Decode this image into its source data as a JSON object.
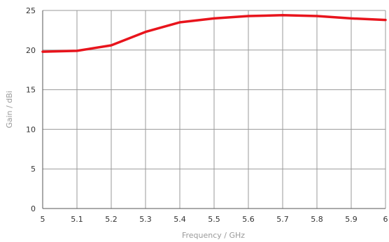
{
  "chart_data": {
    "type": "line",
    "title": "",
    "xlabel": "Frequency / GHz",
    "ylabel": "Gain / dBi",
    "xlim": [
      5,
      6
    ],
    "ylim": [
      0,
      25
    ],
    "x_ticks": [
      "5",
      "5.1",
      "5.2",
      "5.3",
      "5.4",
      "5.5",
      "5.6",
      "5.7",
      "5.8",
      "5.9",
      "6"
    ],
    "y_ticks": [
      "0",
      "5",
      "10",
      "15",
      "20",
      "25"
    ],
    "grid": true,
    "series": [
      {
        "color": "#e8141c",
        "x": [
          5.0,
          5.1,
          5.2,
          5.3,
          5.4,
          5.5,
          5.6,
          5.7,
          5.8,
          5.9,
          6.0
        ],
        "y": [
          19.8,
          19.9,
          20.6,
          22.3,
          23.5,
          24.0,
          24.3,
          24.4,
          24.3,
          24.0,
          23.8
        ]
      }
    ]
  }
}
